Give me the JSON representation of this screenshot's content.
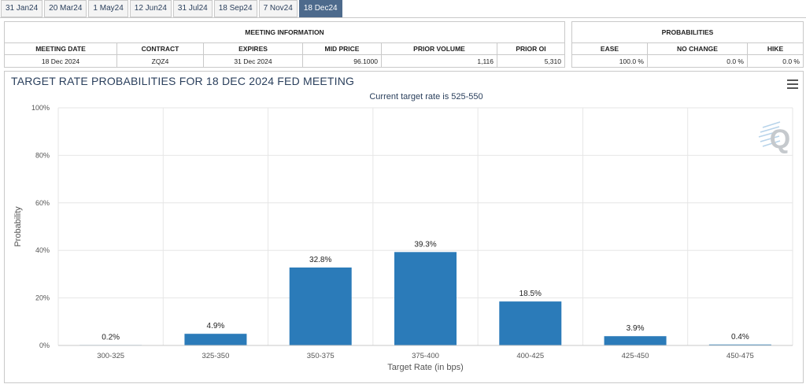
{
  "tabs": [
    "31 Jan24",
    "20 Mar24",
    "1 May24",
    "12 Jun24",
    "31 Jul24",
    "18 Sep24",
    "7 Nov24",
    "18 Dec24"
  ],
  "active_tab": "18 Dec24",
  "meeting_info": {
    "header": "MEETING INFORMATION",
    "columns": [
      "MEETING DATE",
      "CONTRACT",
      "EXPIRES",
      "MID PRICE",
      "PRIOR VOLUME",
      "PRIOR OI"
    ],
    "row": [
      "18 Dec 2024",
      "ZQZ4",
      "31 Dec 2024",
      "96.1000",
      "1,116",
      "5,310"
    ]
  },
  "probabilities": {
    "header": "PROBABILITIES",
    "columns": [
      "EASE",
      "NO CHANGE",
      "HIKE"
    ],
    "row": [
      "100.0 %",
      "0.0 %",
      "0.0 %"
    ]
  },
  "chart": {
    "title": "TARGET RATE PROBABILITIES FOR 18 DEC 2024 FED MEETING",
    "subtitle": "Current target rate is 525-550",
    "brand_mark": "Q"
  },
  "chart_data": {
    "type": "bar",
    "title": "TARGET RATE PROBABILITIES FOR 18 DEC 2024 FED MEETING",
    "subtitle": "Current target rate is 525-550",
    "xlabel": "Target Rate (in bps)",
    "ylabel": "Probability",
    "categories": [
      "300-325",
      "325-350",
      "350-375",
      "375-400",
      "400-425",
      "425-450",
      "450-475"
    ],
    "values": [
      0.2,
      4.9,
      32.8,
      39.3,
      18.5,
      3.9,
      0.4
    ],
    "data_labels": [
      "0.2%",
      "4.9%",
      "32.8%",
      "39.3%",
      "18.5%",
      "3.9%",
      "0.4%"
    ],
    "ylim": [
      0,
      100
    ],
    "yticks": [
      "0%",
      "20%",
      "40%",
      "60%",
      "80%",
      "100%"
    ],
    "grid": true,
    "bar_color": "#2b7bb9"
  }
}
